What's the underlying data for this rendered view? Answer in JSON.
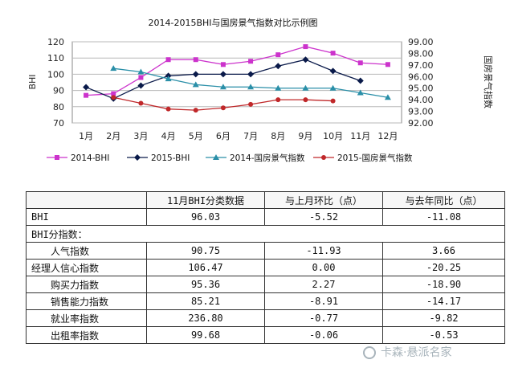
{
  "chart_data": {
    "type": "line",
    "title": "2014-2015BHI与国房景气指数对比示例图",
    "ylabel": "BHI",
    "y2label": "国房景气指数",
    "categories": [
      "1月",
      "2月",
      "3月",
      "4月",
      "5月",
      "6月",
      "7月",
      "8月",
      "9月",
      "10月",
      "11月",
      "12月"
    ],
    "ylim": [
      70,
      120
    ],
    "yticks": [
      70,
      80,
      90,
      100,
      110,
      120
    ],
    "y2lim": [
      92.0,
      99.0
    ],
    "y2ticks": [
      "92.00",
      "93.00",
      "94.00",
      "95.00",
      "96.00",
      "97.00",
      "98.00",
      "99.00"
    ],
    "grid": true,
    "legend_position": "bottom",
    "series": [
      {
        "name": "2014-BHI",
        "axis": "left",
        "color": "#cc33cc",
        "marker": "square",
        "values": [
          87,
          88,
          98,
          109,
          109,
          106,
          108,
          112,
          117,
          113,
          107,
          106
        ]
      },
      {
        "name": "2015-BHI",
        "axis": "left",
        "color": "#0a1a4a",
        "marker": "diamond",
        "values": [
          92,
          85,
          93,
          99,
          100,
          100,
          100,
          105,
          109,
          102,
          96,
          null
        ]
      },
      {
        "name": "2014-国房景气指数",
        "axis": "right",
        "color": "#2a8fa8",
        "marker": "triangle",
        "values": [
          null,
          96.7,
          96.4,
          95.8,
          95.3,
          95.1,
          95.1,
          95.0,
          95.0,
          95.0,
          94.6,
          94.2
        ]
      },
      {
        "name": "2015-国房景气指数",
        "axis": "right",
        "color": "#c0282a",
        "marker": "circle",
        "values": [
          null,
          94.2,
          93.7,
          93.2,
          93.1,
          93.3,
          93.6,
          94.0,
          94.0,
          93.9,
          null,
          null
        ]
      }
    ]
  },
  "table": {
    "header": [
      "",
      "11月BHI分类数据",
      "与上月环比（点）",
      "与去年同比（点）"
    ],
    "rows": [
      {
        "name": "BHI",
        "values": [
          "96.03",
          "-5.52",
          "-11.08"
        ],
        "style": "name"
      },
      {
        "name": "BHI分指数：",
        "values": [
          "",
          "",
          ""
        ],
        "style": "name",
        "span": true
      },
      {
        "name": "人气指数",
        "values": [
          "90.75",
          "-11.93",
          "3.66"
        ],
        "style": "indent"
      },
      {
        "name": "经理人信心指数",
        "values": [
          "106.47",
          "0.00",
          "-20.25"
        ],
        "style": "name"
      },
      {
        "name": "购买力指数",
        "values": [
          "95.36",
          "2.27",
          "-18.90"
        ],
        "style": "indent"
      },
      {
        "name": "销售能力指数",
        "values": [
          "85.21",
          "-8.91",
          "-14.17"
        ],
        "style": "indent"
      },
      {
        "name": "就业率指数",
        "values": [
          "236.80",
          "-0.77",
          "-9.82"
        ],
        "style": "indent"
      },
      {
        "name": "出租率指数",
        "values": [
          "99.68",
          "-0.06",
          "-0.53"
        ],
        "style": "indent"
      }
    ]
  },
  "watermark": {
    "text": "卡森·悬派名家",
    "icon": "wechat-icon"
  }
}
